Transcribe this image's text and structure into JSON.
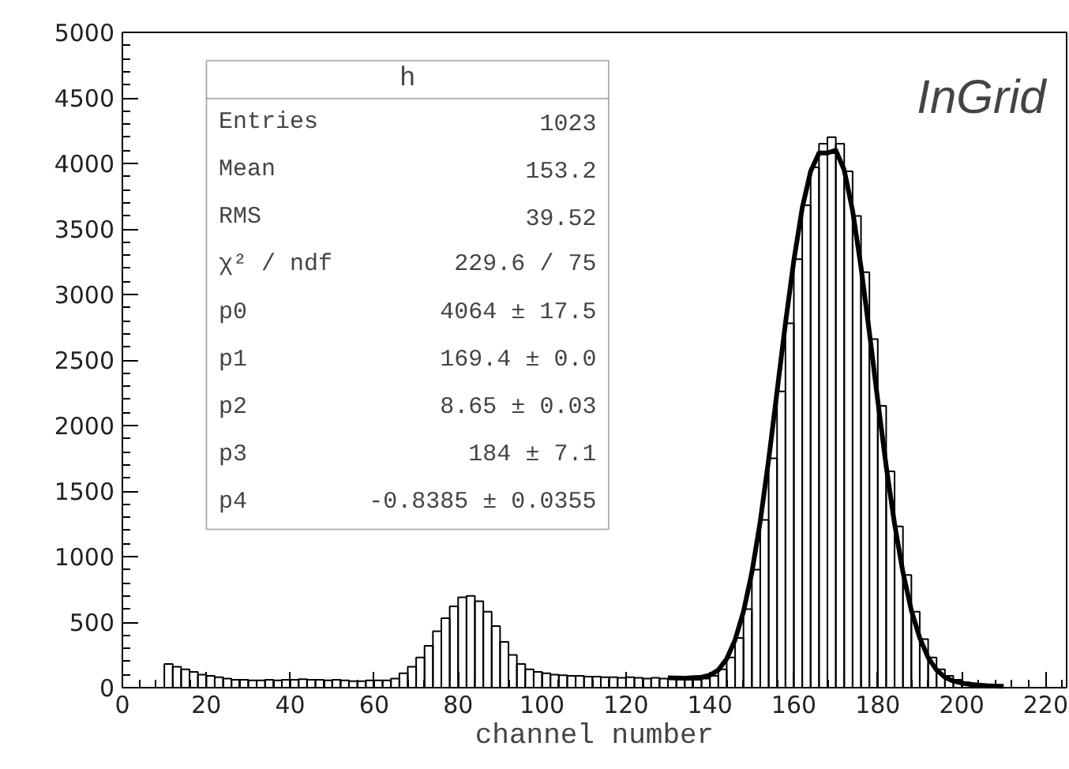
{
  "chart_data": {
    "type": "histogram",
    "xlabel": "channel number",
    "xlim": [
      0,
      225
    ],
    "ylim": [
      0,
      5000
    ],
    "xticks": [
      0,
      20,
      40,
      60,
      80,
      100,
      120,
      140,
      160,
      180,
      200,
      220
    ],
    "yticks": [
      0,
      500,
      1000,
      1500,
      2000,
      2500,
      3000,
      3500,
      4000,
      4500,
      5000
    ],
    "grid": false,
    "annotations": [
      "InGrid",
      "h",
      "Entries",
      "1023",
      "Mean",
      "153.2",
      "RMS",
      "39.52",
      "χ² / ndf",
      "229.6 / 75",
      "p0",
      "4064 ± 17.5",
      "p1",
      "169.4 ± 0.0",
      "p2",
      "8.65 ± 0.03",
      "p3",
      "184 ± 7.1",
      "p4",
      "-0.8385 ± 0.0355"
    ],
    "series": [
      {
        "color": "#000000",
        "bins": [
          0,
          2,
          4,
          6,
          8,
          10,
          12,
          14,
          16,
          18,
          20,
          22,
          24,
          26,
          28,
          30,
          32,
          34,
          36,
          38,
          40,
          42,
          44,
          46,
          48,
          50,
          52,
          54,
          56,
          58,
          60,
          62,
          64,
          66,
          68,
          70,
          72,
          74,
          76,
          78,
          80,
          82,
          84,
          86,
          88,
          90,
          92,
          94,
          96,
          98,
          100,
          102,
          104,
          106,
          108,
          110,
          112,
          114,
          116,
          118,
          120,
          122,
          124,
          126,
          128,
          130,
          132,
          134,
          136,
          138,
          140,
          142,
          144,
          146,
          148,
          150,
          152,
          154,
          156,
          158,
          160,
          162,
          164,
          166,
          168,
          170,
          172,
          174,
          176,
          178,
          180,
          182,
          184,
          186,
          188,
          190,
          192,
          194,
          196,
          198,
          200,
          202,
          204,
          206,
          208,
          210,
          212,
          214,
          216,
          218,
          220,
          222,
          224
        ],
        "values": [
          0,
          0,
          0,
          0,
          0,
          180,
          160,
          140,
          120,
          100,
          90,
          80,
          70,
          60,
          60,
          55,
          55,
          60,
          55,
          60,
          60,
          65,
          60,
          60,
          55,
          60,
          55,
          50,
          50,
          55,
          55,
          55,
          70,
          110,
          160,
          230,
          320,
          430,
          530,
          620,
          690,
          700,
          660,
          580,
          470,
          350,
          250,
          180,
          140,
          120,
          110,
          100,
          95,
          90,
          90,
          85,
          85,
          80,
          80,
          75,
          80,
          75,
          70,
          75,
          70,
          70,
          65,
          60,
          60,
          70,
          90,
          140,
          230,
          380,
          600,
          900,
          1280,
          1750,
          2260,
          2780,
          3270,
          3680,
          3970,
          4150,
          4200,
          4150,
          3940,
          3600,
          3170,
          2660,
          2150,
          1650,
          1230,
          860,
          580,
          370,
          230,
          140,
          90,
          60,
          40,
          30,
          null,
          15,
          null,
          0,
          0,
          0,
          0,
          0,
          0,
          0
        ]
      },
      {
        "type": "line",
        "color": "#000000",
        "x": [
          130,
          134,
          138,
          140,
          142,
          144,
          146,
          148,
          150,
          152,
          154,
          156,
          158,
          160,
          162,
          164,
          166,
          168,
          170,
          172,
          174,
          176,
          178,
          180,
          182,
          184,
          186,
          188,
          190,
          192,
          194,
          196,
          198,
          200,
          202,
          204,
          206,
          208,
          210
        ],
        "values": [
          75,
          72,
          80,
          95,
          135,
          220,
          365,
          580,
          880,
          1270,
          1740,
          2260,
          2780,
          3260,
          3660,
          3940,
          4080,
          4080,
          4100,
          3950,
          3640,
          3210,
          2710,
          2190,
          1690,
          1250,
          880,
          590,
          380,
          230,
          135,
          80,
          50,
          35,
          25,
          20,
          15,
          12,
          10
        ]
      }
    ]
  }
}
